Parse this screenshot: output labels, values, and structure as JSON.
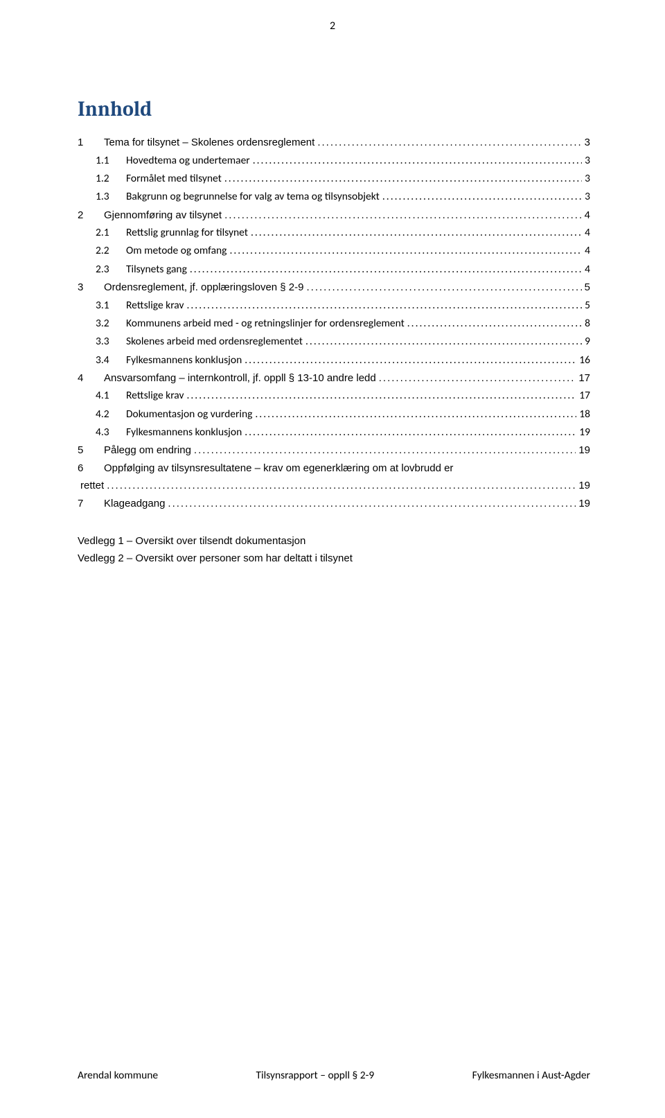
{
  "page_number": "2",
  "title": "Innhold",
  "toc": [
    {
      "level": 1,
      "num": "1",
      "label": "Tema for tilsynet – Skolenes ordensreglement",
      "page": "3"
    },
    {
      "level": 2,
      "num": "1.1",
      "label": "Hovedtema og undertemaer",
      "page": "3"
    },
    {
      "level": 2,
      "num": "1.2",
      "label": "Formålet med tilsynet",
      "page": "3"
    },
    {
      "level": 2,
      "num": "1.3",
      "label": "Bakgrunn og begrunnelse for valg av tema og tilsynsobjekt",
      "page": "3"
    },
    {
      "level": 1,
      "num": "2",
      "label": "Gjennomføring av tilsynet",
      "page": "4"
    },
    {
      "level": 2,
      "num": "2.1",
      "label": "Rettslig grunnlag for tilsynet",
      "page": "4"
    },
    {
      "level": 2,
      "num": "2.2",
      "label": "Om metode og omfang",
      "page": "4"
    },
    {
      "level": 2,
      "num": "2.3",
      "label": "Tilsynets gang",
      "page": "4"
    },
    {
      "level": 1,
      "num": "3",
      "label": "Ordensreglement, jf. opplæringsloven § 2-9",
      "page": "5"
    },
    {
      "level": 2,
      "num": "3.1",
      "label": "Rettslige krav",
      "page": "5"
    },
    {
      "level": 2,
      "num": "3.2",
      "label": "Kommunens arbeid med - og retningslinjer for ordensreglement",
      "page": "8"
    },
    {
      "level": 2,
      "num": "3.3",
      "label": "Skolenes arbeid med ordensreglementet",
      "page": "9"
    },
    {
      "level": 2,
      "num": "3.4",
      "label": "Fylkesmannens konklusjon",
      "page": "16"
    },
    {
      "level": 1,
      "num": "4",
      "label": "Ansvarsomfang – internkontroll, jf. oppll § 13-10 andre ledd",
      "page": "17"
    },
    {
      "level": 2,
      "num": "4.1",
      "label": "Rettslige krav",
      "page": "17"
    },
    {
      "level": 2,
      "num": "4.2",
      "label": "Dokumentasjon og vurdering",
      "page": "18"
    },
    {
      "level": 2,
      "num": "4.3",
      "label": "Fylkesmannens konklusjon",
      "page": "19"
    },
    {
      "level": 1,
      "num": "5",
      "label": "Pålegg om endring",
      "page": "19"
    },
    {
      "level": 1,
      "num": "6",
      "label": "Oppfølging av tilsynsresultatene – krav om egenerklæring om at lovbrudd er",
      "page": "",
      "nowrap_off": true
    },
    {
      "level": 1,
      "num": "",
      "label": "rettet",
      "page": "19",
      "continue": true
    },
    {
      "level": 1,
      "num": "7",
      "label": "Klageadgang",
      "page": "19"
    }
  ],
  "appendix": [
    "Vedlegg 1 – Oversikt over tilsendt dokumentasjon",
    "Vedlegg 2 – Oversikt over personer som har deltatt i tilsynet"
  ],
  "footer": {
    "left": "Arendal kommune",
    "center": "Tilsynsrapport – oppll § 2-9",
    "right": "Fylkesmannen i Aust-Agder"
  },
  "leader_dots": "...................................................................................................................................................................................................."
}
